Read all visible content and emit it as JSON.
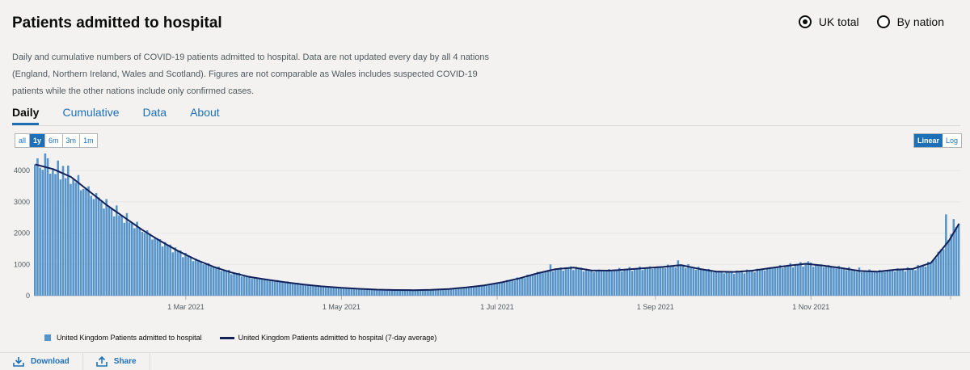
{
  "header": {
    "title": "Patients admitted to hospital"
  },
  "radios": {
    "uk_total": "UK total",
    "by_nation": "By nation",
    "selected": "uk_total"
  },
  "description": "Daily and cumulative numbers of COVID-19 patients admitted to hospital. Data are not updated every day by all 4 nations (England, Northern Ireland, Wales and Scotland). Figures are not comparable as Wales includes suspected COVID-19 patients while the other nations include only confirmed cases.",
  "tabs": [
    {
      "label": "Daily",
      "active": true
    },
    {
      "label": "Cumulative",
      "active": false
    },
    {
      "label": "Data",
      "active": false
    },
    {
      "label": "About",
      "active": false
    }
  ],
  "ranges": [
    {
      "label": "all",
      "active": false
    },
    {
      "label": "1y",
      "active": true
    },
    {
      "label": "6m",
      "active": false
    },
    {
      "label": "3m",
      "active": false
    },
    {
      "label": "1m",
      "active": false
    }
  ],
  "scales": [
    {
      "label": "Linear",
      "active": true
    },
    {
      "label": "Log",
      "active": false
    }
  ],
  "actions": {
    "download": "Download",
    "share": "Share"
  },
  "colors": {
    "bar": "#5694ca",
    "line": "#12215a",
    "accent": "#1d70b8"
  },
  "chart_data": {
    "type": "bar",
    "x_start": "2021-01-01",
    "x_end": "2021-12-29",
    "ylim": [
      0,
      4600
    ],
    "y_ticks": [
      0,
      1000,
      2000,
      3000,
      4000
    ],
    "x_ticks": [
      {
        "date": "2021-03-01",
        "label": "1 Mar 2021"
      },
      {
        "date": "2021-05-01",
        "label": "1 May 2021"
      },
      {
        "date": "2021-07-01",
        "label": "1 Jul 2021"
      },
      {
        "date": "2021-09-01",
        "label": "1 Sep 2021"
      },
      {
        "date": "2021-11-01",
        "label": "1 Nov 2021"
      }
    ],
    "series": [
      {
        "name": "United Kingdom Patients admitted to hospital",
        "type": "bar"
      },
      {
        "name": "United Kingdom Patients admitted to hospital (7-day average)",
        "type": "line"
      }
    ],
    "avg_points": [
      [
        "2021-01-01",
        4200
      ],
      [
        "2021-01-08",
        4050
      ],
      [
        "2021-01-15",
        3800
      ],
      [
        "2021-01-22",
        3350
      ],
      [
        "2021-01-29",
        2900
      ],
      [
        "2021-02-05",
        2500
      ],
      [
        "2021-02-12",
        2100
      ],
      [
        "2021-02-19",
        1750
      ],
      [
        "2021-02-26",
        1430
      ],
      [
        "2021-03-05",
        1150
      ],
      [
        "2021-03-12",
        920
      ],
      [
        "2021-03-19",
        740
      ],
      [
        "2021-03-26",
        600
      ],
      [
        "2021-04-02",
        510
      ],
      [
        "2021-04-09",
        430
      ],
      [
        "2021-04-16",
        360
      ],
      [
        "2021-04-23",
        300
      ],
      [
        "2021-05-01",
        250
      ],
      [
        "2021-05-08",
        220
      ],
      [
        "2021-05-15",
        195
      ],
      [
        "2021-05-22",
        180
      ],
      [
        "2021-05-29",
        175
      ],
      [
        "2021-06-05",
        185
      ],
      [
        "2021-06-12",
        215
      ],
      [
        "2021-06-19",
        265
      ],
      [
        "2021-06-26",
        330
      ],
      [
        "2021-07-03",
        430
      ],
      [
        "2021-07-10",
        560
      ],
      [
        "2021-07-17",
        720
      ],
      [
        "2021-07-24",
        850
      ],
      [
        "2021-07-31",
        900
      ],
      [
        "2021-08-07",
        810
      ],
      [
        "2021-08-14",
        800
      ],
      [
        "2021-08-21",
        840
      ],
      [
        "2021-08-28",
        880
      ],
      [
        "2021-09-04",
        920
      ],
      [
        "2021-09-11",
        980
      ],
      [
        "2021-09-18",
        860
      ],
      [
        "2021-09-25",
        770
      ],
      [
        "2021-10-02",
        760
      ],
      [
        "2021-10-09",
        800
      ],
      [
        "2021-10-16",
        880
      ],
      [
        "2021-10-23",
        960
      ],
      [
        "2021-10-30",
        1020
      ],
      [
        "2021-11-06",
        960
      ],
      [
        "2021-11-13",
        880
      ],
      [
        "2021-11-20",
        790
      ],
      [
        "2021-11-27",
        770
      ],
      [
        "2021-12-04",
        830
      ],
      [
        "2021-12-11",
        860
      ],
      [
        "2021-12-18",
        1050
      ],
      [
        "2021-12-25",
        1750
      ],
      [
        "2021-12-29",
        2300
      ]
    ],
    "bar_noise": 0.09,
    "bar_spikes": [
      [
        "2021-01-05",
        4550
      ],
      [
        "2021-01-12",
        4150
      ],
      [
        "2021-07-22",
        1000
      ],
      [
        "2021-09-10",
        1130
      ],
      [
        "2021-10-31",
        1100
      ],
      [
        "2021-11-20",
        900
      ],
      [
        "2021-12-24",
        2600
      ],
      [
        "2021-12-27",
        2450
      ]
    ]
  }
}
